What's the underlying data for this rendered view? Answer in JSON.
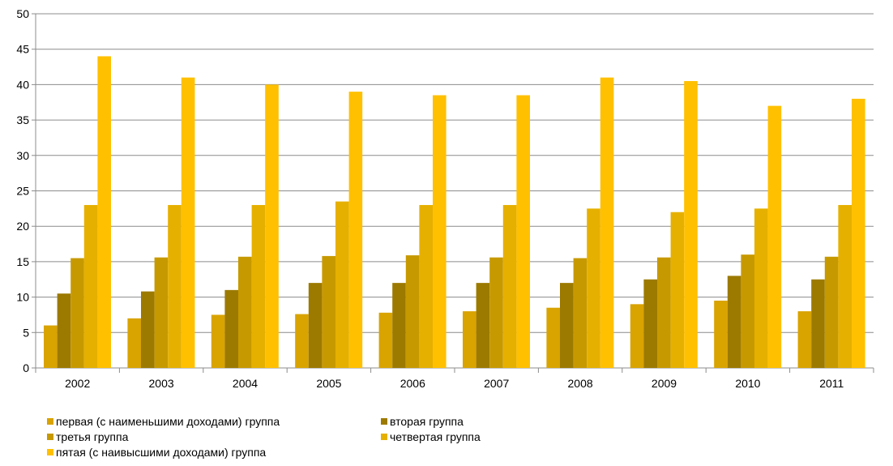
{
  "chart_data": {
    "type": "bar",
    "categories": [
      "2002",
      "2003",
      "2004",
      "2005",
      "2006",
      "2007",
      "2008",
      "2009",
      "2010",
      "2011"
    ],
    "series": [
      {
        "name": "первая (с наименьшими доходами) группа",
        "color": "#D9A300",
        "values": [
          6,
          7,
          7.5,
          7.6,
          7.8,
          8,
          8.5,
          9,
          9.5,
          8
        ]
      },
      {
        "name": "вторая группа",
        "color": "#9C7A00",
        "values": [
          10.5,
          10.8,
          11,
          12,
          12,
          12,
          12,
          12.5,
          13,
          12.5
        ]
      },
      {
        "name": "третья группа",
        "color": "#C79900",
        "values": [
          15.5,
          15.6,
          15.7,
          15.8,
          15.9,
          15.6,
          15.5,
          15.6,
          16,
          15.7
        ]
      },
      {
        "name": "четвертая группа",
        "color": "#E6B000",
        "values": [
          23,
          23,
          23,
          23.5,
          23,
          23,
          22.5,
          22,
          22.5,
          23
        ]
      },
      {
        "name": "пятая (с наивысшими доходами) группа",
        "color": "#FFC000",
        "values": [
          44,
          41,
          40,
          39,
          38.5,
          38.5,
          41,
          40.5,
          37,
          38
        ]
      }
    ],
    "yticks": [
      "0",
      "5",
      "10",
      "15",
      "20",
      "25",
      "30",
      "35",
      "40",
      "45",
      "50"
    ],
    "ylim": [
      0,
      50
    ],
    "grid": true,
    "legend_position": "bottom"
  }
}
